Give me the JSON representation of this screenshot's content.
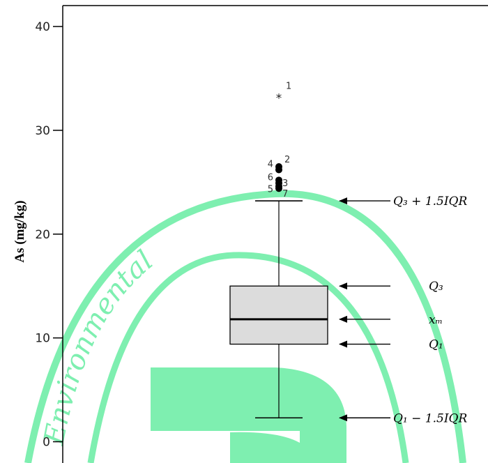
{
  "colors": {
    "watermark": "#7EEFB0",
    "box_fill": "#DCDCDC",
    "axis": "#000000"
  },
  "watermark": {
    "text": "Environmental"
  },
  "chart_data": {
    "type": "boxplot",
    "ylabel": "As (mg/kg)",
    "xlabel": "",
    "ylim": [
      -0.3,
      40.5
    ],
    "yticks": [
      0,
      10,
      20,
      30,
      40
    ],
    "box": {
      "q1": 9.4,
      "median": 11.8,
      "q3": 15.0,
      "whisker_low": 2.3,
      "whisker_high": 23.2
    },
    "outliers": [
      {
        "label": "1",
        "value": 33.3,
        "marker": "star"
      },
      {
        "label": "2",
        "value": 26.5,
        "marker": "dot"
      },
      {
        "label": "4",
        "value": 26.2,
        "marker": "dot"
      },
      {
        "label": "6",
        "value": 25.2,
        "marker": "dot"
      },
      {
        "label": "3",
        "value": 24.9,
        "marker": "dot"
      },
      {
        "label": "5",
        "value": 24.6,
        "marker": "dot"
      },
      {
        "label": "7",
        "value": 24.4,
        "marker": "dot"
      }
    ],
    "annotations": [
      {
        "target": "whisker_high",
        "text": "Q₃ + 1.5IQR"
      },
      {
        "target": "q3",
        "text": "Q₃"
      },
      {
        "target": "median",
        "text": "xₘ"
      },
      {
        "target": "q1",
        "text": "Q₁"
      },
      {
        "target": "whisker_low",
        "text": "Q₁ − 1.5IQR"
      }
    ]
  }
}
